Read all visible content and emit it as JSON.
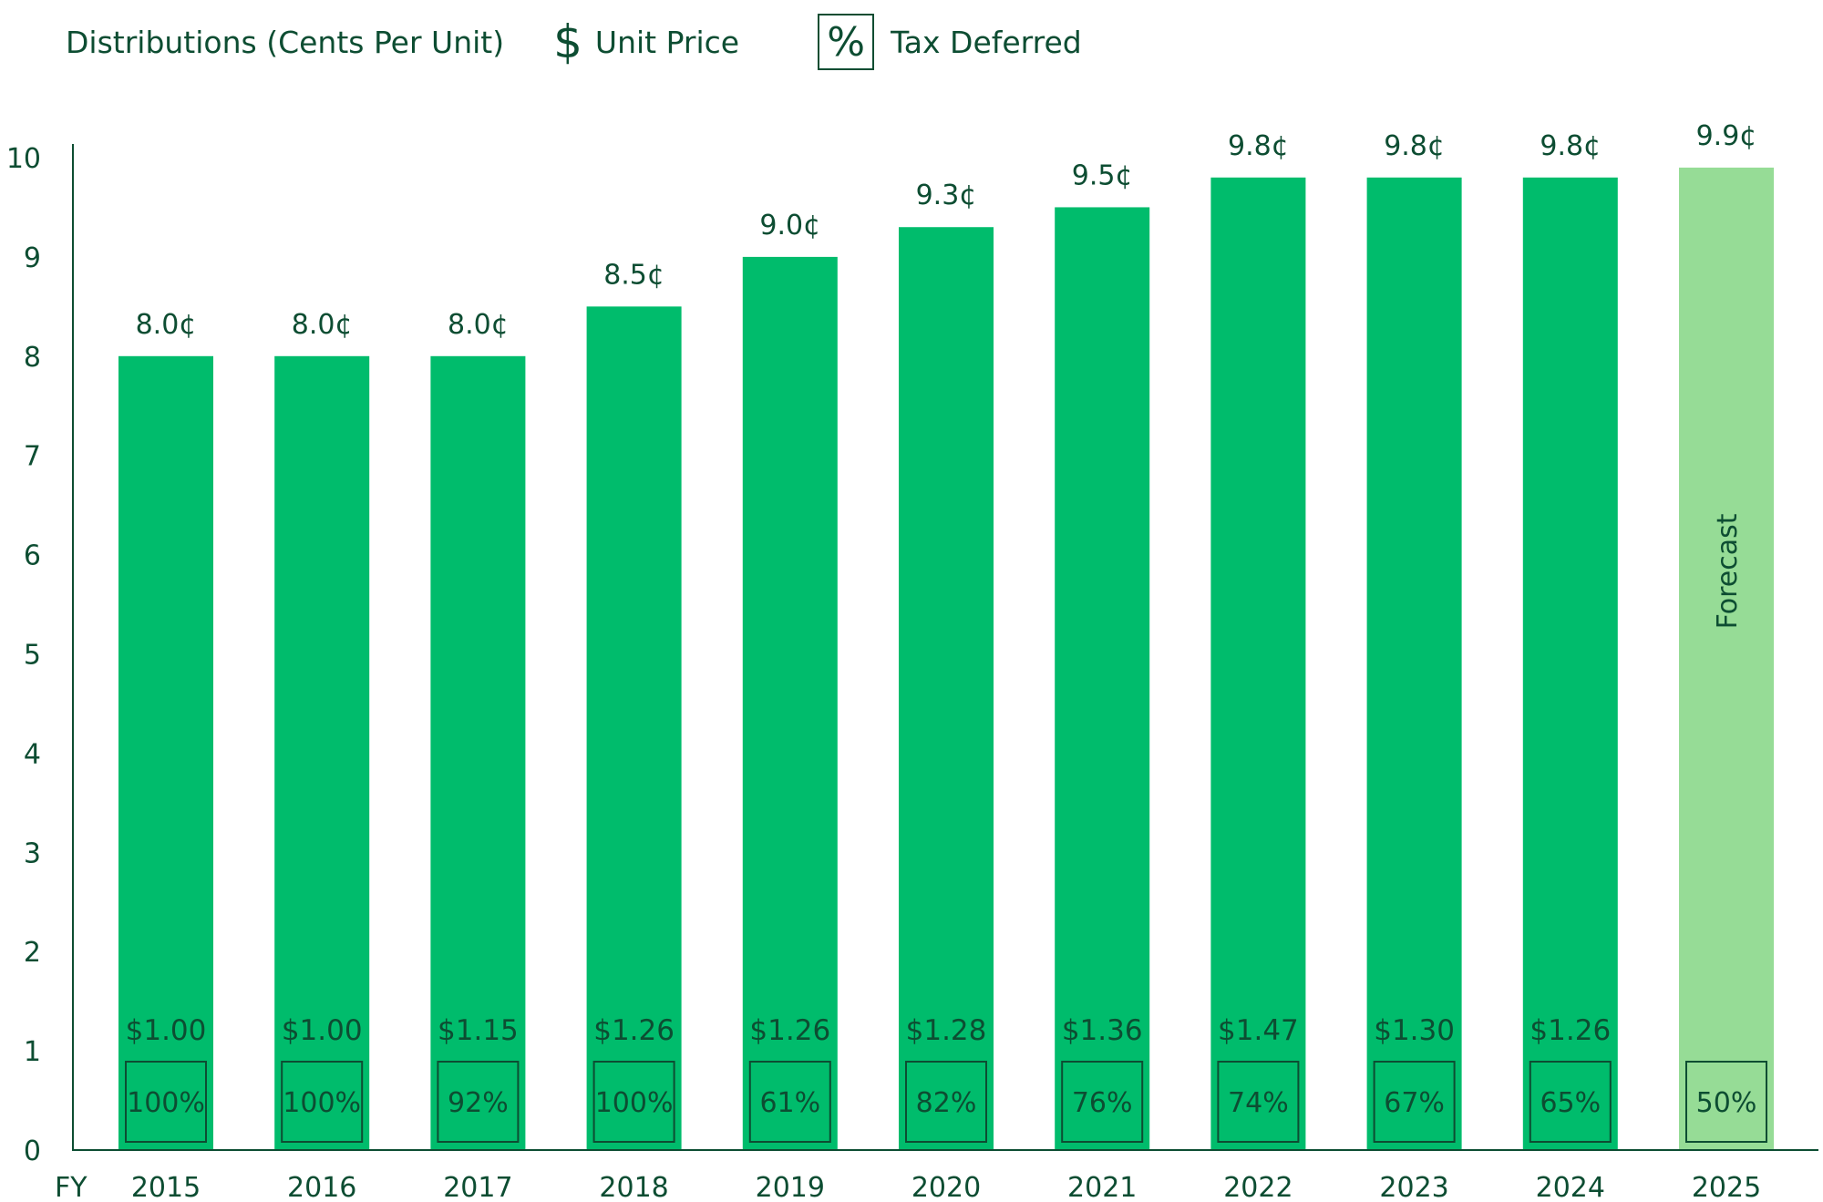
{
  "legend": {
    "title": "Distributions  (Cents Per Unit)",
    "unit_price_symbol": "$",
    "unit_price_label": "Unit Price",
    "tax_deferred_symbol": "%",
    "tax_deferred_label": "Tax Deferred"
  },
  "colors": {
    "actual_bar": "#00bc6c",
    "forecast_bar": "#96dc96",
    "text": "#0d4d32",
    "box": "#0d4d32"
  },
  "chart_data": {
    "type": "bar",
    "title": "Distributions (Cents Per Unit)",
    "xlabel": "FY",
    "ylabel": "",
    "ylim": [
      0,
      10
    ],
    "yticks": [
      0,
      1,
      2,
      3,
      4,
      5,
      6,
      7,
      8,
      9,
      10
    ],
    "categories": [
      "2015",
      "2016",
      "2017",
      "2018",
      "2019",
      "2020",
      "2021",
      "2022",
      "2023",
      "2024",
      "2025"
    ],
    "values": [
      8.0,
      8.0,
      8.0,
      8.5,
      9.0,
      9.3,
      9.5,
      9.8,
      9.8,
      9.8,
      9.9
    ],
    "value_labels": [
      "8.0¢",
      "8.0¢",
      "8.0¢",
      "8.5¢",
      "9.0¢",
      "9.3¢",
      "9.5¢",
      "9.8¢",
      "9.8¢",
      "9.8¢",
      "9.9¢"
    ],
    "unit_prices": [
      "$1.00",
      "$1.00",
      "$1.15",
      "$1.26",
      "$1.26",
      "$1.28",
      "$1.36",
      "$1.47",
      "$1.30",
      "$1.26",
      ""
    ],
    "tax_deferred": [
      "100%",
      "100%",
      "92%",
      "100%",
      "61%",
      "82%",
      "76%",
      "74%",
      "67%",
      "65%",
      "50%"
    ],
    "forecast": [
      false,
      false,
      false,
      false,
      false,
      false,
      false,
      false,
      false,
      false,
      true
    ],
    "forecast_label": "Forecast"
  }
}
